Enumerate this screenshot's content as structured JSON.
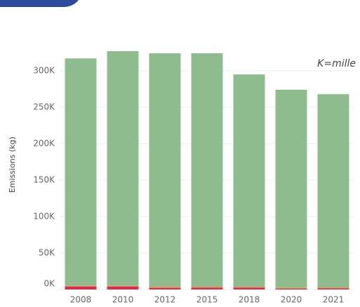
{
  "chart_data": {
    "type": "stacked_bar",
    "y_label": "Emissions (kg)",
    "annotation": "K=mille",
    "categories": [
      "2008",
      "2010",
      "2012",
      "2015",
      "2018",
      "2020",
      "2021"
    ],
    "series": [
      {
        "color": "#dc2d4f",
        "values": [
          4000,
          4000,
          2000,
          2500,
          2500,
          1000,
          1500
        ]
      },
      {
        "color": "#f07b3f",
        "values": [
          1000,
          1000,
          1500,
          1000,
          1000,
          1000,
          1000
        ]
      },
      {
        "color": "#8fbc8f",
        "values": [
          312000,
          322000,
          320500,
          320500,
          291500,
          272000,
          265500
        ]
      }
    ],
    "ylim": [
      0,
      330000
    ],
    "yticks": [
      {
        "value": 0,
        "label": "0K"
      },
      {
        "value": 50000,
        "label": "50K"
      },
      {
        "value": 100000,
        "label": "100K"
      },
      {
        "value": 150000,
        "label": "150K"
      },
      {
        "value": 200000,
        "label": "200K"
      },
      {
        "value": 250000,
        "label": "250K"
      },
      {
        "value": 300000,
        "label": "300K"
      }
    ],
    "grid": true
  }
}
